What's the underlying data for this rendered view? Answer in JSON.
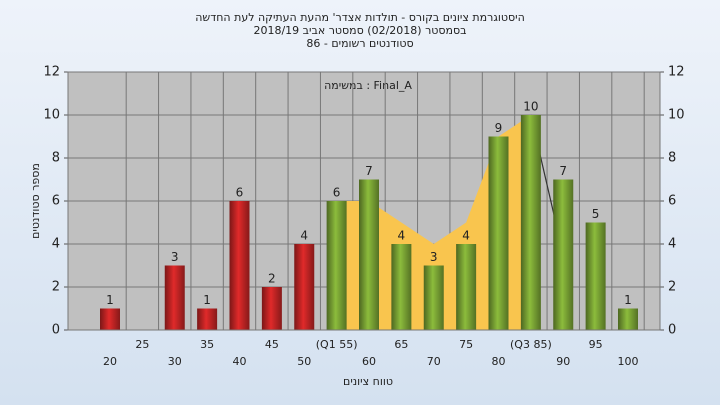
{
  "chart_data": {
    "type": "bar",
    "title": [
      "היסטוגרמת ציונים בקורס - תולדות אצדר' מהעת העתיקה לעת החדשה",
      "בסמסטר  (02/2018)  סמסטר אביב 2018/19",
      "סטודנטים רשומים - 86"
    ],
    "annotation": "במשימה : Final_A",
    "y_label": "מספר סטודנטים",
    "x_label": "טווח ציונים",
    "categories": [
      "20",
      "25",
      "30",
      "35",
      "40",
      "45",
      "50",
      "(Q1 55)",
      "60",
      "65",
      "70",
      "75",
      "80",
      "(Q3 85)",
      "90",
      "95",
      "100"
    ],
    "series": [
      {
        "type": "area",
        "color": "#f9c54e",
        "values": [
          null,
          null,
          null,
          null,
          null,
          null,
          null,
          6,
          6,
          5,
          4,
          5,
          9,
          10,
          null,
          null,
          null
        ]
      },
      {
        "type": "line",
        "color": "#333333",
        "values": [
          null,
          null,
          null,
          null,
          null,
          null,
          null,
          null,
          null,
          null,
          null,
          null,
          null,
          10,
          3.5,
          null,
          null
        ]
      },
      {
        "type": "bar",
        "color": "#e02a2a",
        "values": [
          1,
          null,
          3,
          1,
          6,
          2,
          4,
          null,
          null,
          null,
          null,
          null,
          null,
          null,
          null,
          null,
          null
        ]
      },
      {
        "type": "bar",
        "color": "#8cbc3c",
        "values": [
          null,
          null,
          null,
          null,
          null,
          null,
          null,
          6,
          7,
          4,
          3,
          4,
          9,
          10,
          7,
          5,
          1
        ]
      }
    ],
    "ylim": [
      0,
      12
    ],
    "yticks": [
      0,
      2,
      4,
      6,
      8,
      10,
      12
    ],
    "y2lim": [
      0,
      12
    ],
    "y2ticks": [
      0,
      2,
      4,
      6,
      8,
      10,
      12
    ],
    "grid": true
  }
}
